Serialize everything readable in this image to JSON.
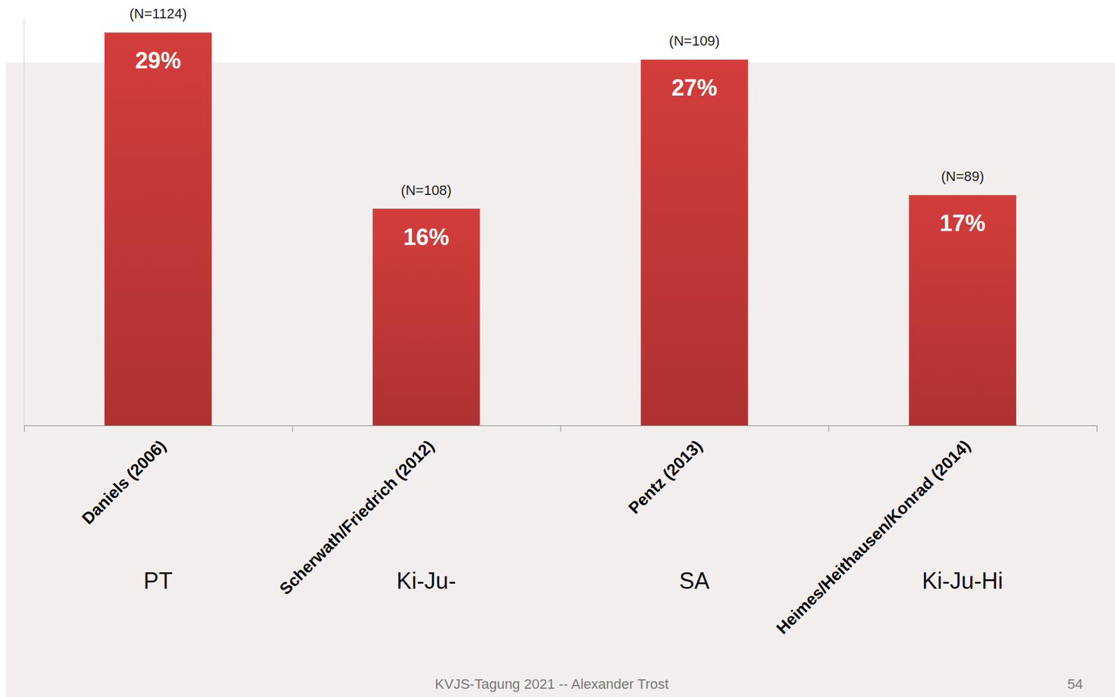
{
  "chart_data": {
    "type": "bar",
    "categories": [
      "Daniels (2006)",
      "Scherwath/Friedrich (2012)",
      "Pentz (2013)",
      "Heimes/Heithausen/Konrad (2014)"
    ],
    "values": [
      29,
      16,
      27,
      17
    ],
    "value_labels": [
      "29%",
      "16%",
      "27%",
      "17%"
    ],
    "data_labels": true,
    "color": "#cc3b3a",
    "ylim": [
      0,
      30
    ],
    "tick_labels": "x",
    "grid": false,
    "sample_sizes": [
      "(N=1124)",
      "(N=108)",
      "(N=109)",
      "(N=89)"
    ],
    "group_labels": [
      "PT",
      "Ki-Ju-",
      "SA",
      "Ki-Ju-Hi"
    ]
  },
  "footer": {
    "text": "KVJS-Tagung 2021 -- Alexander Trost",
    "page": 54
  }
}
